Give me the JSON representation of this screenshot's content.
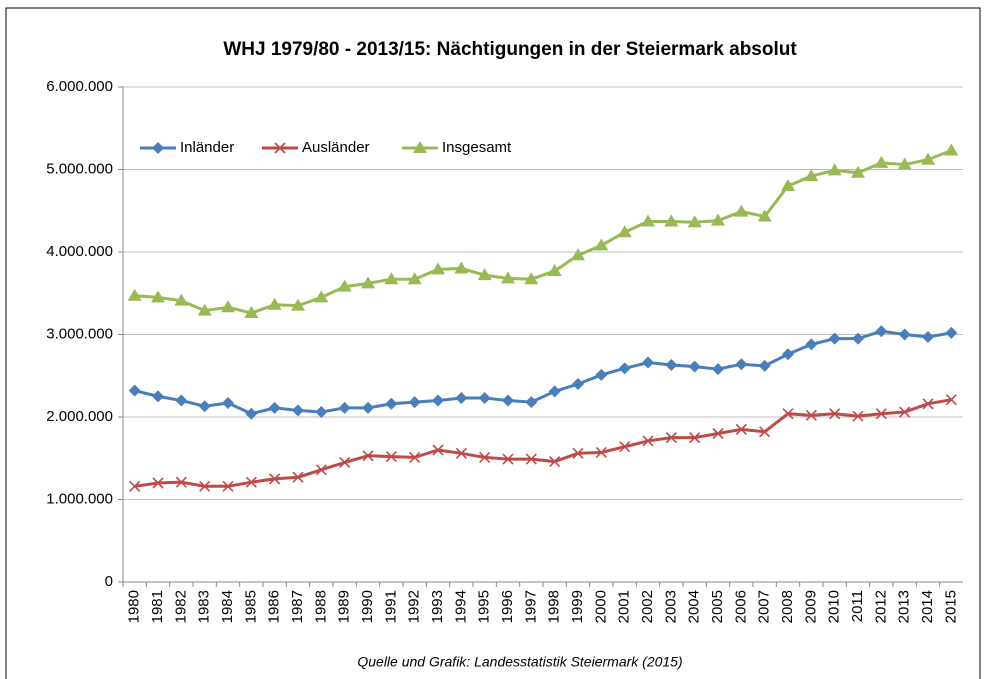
{
  "chart_data": {
    "type": "line",
    "title": "WHJ 1979/80 - 2013/15: Nächtigungen in der Steiermark absolut",
    "source": "Quelle und Grafik: Landesstatistik Steiermark (2015)",
    "categories": [
      "1980",
      "1981",
      "1982",
      "1983",
      "1984",
      "1985",
      "1986",
      "1987",
      "1988",
      "1989",
      "1990",
      "1991",
      "1992",
      "1993",
      "1994",
      "1995",
      "1996",
      "1997",
      "1998",
      "1999",
      "2000",
      "2001",
      "2002",
      "2003",
      "2004",
      "2005",
      "2006",
      "2007",
      "2008",
      "2009",
      "2010",
      "2011",
      "2012",
      "2013",
      "2014",
      "2015"
    ],
    "series": [
      {
        "name": "Inländer",
        "color": "#4a7ebb",
        "marker": "diamond",
        "values": [
          2320000,
          2250000,
          2200000,
          2130000,
          2170000,
          2040000,
          2110000,
          2080000,
          2060000,
          2110000,
          2110000,
          2160000,
          2180000,
          2200000,
          2230000,
          2230000,
          2200000,
          2180000,
          2310000,
          2400000,
          2510000,
          2590000,
          2660000,
          2630000,
          2610000,
          2580000,
          2640000,
          2620000,
          2760000,
          2880000,
          2950000,
          2950000,
          3040000,
          3000000,
          2970000,
          3020000
        ]
      },
      {
        "name": "Ausländer",
        "color": "#be4b48",
        "marker": "x",
        "values": [
          1160000,
          1200000,
          1210000,
          1160000,
          1160000,
          1210000,
          1250000,
          1270000,
          1360000,
          1450000,
          1530000,
          1520000,
          1510000,
          1600000,
          1560000,
          1510000,
          1490000,
          1490000,
          1460000,
          1560000,
          1570000,
          1640000,
          1710000,
          1750000,
          1750000,
          1800000,
          1850000,
          1820000,
          2040000,
          2020000,
          2040000,
          2010000,
          2040000,
          2060000,
          2160000,
          2210000
        ]
      },
      {
        "name": "Insgesamt",
        "color": "#98b954",
        "marker": "triangle",
        "values": [
          3470000,
          3450000,
          3410000,
          3290000,
          3330000,
          3260000,
          3360000,
          3350000,
          3450000,
          3580000,
          3620000,
          3670000,
          3670000,
          3790000,
          3800000,
          3720000,
          3680000,
          3670000,
          3770000,
          3960000,
          4080000,
          4240000,
          4370000,
          4370000,
          4360000,
          4380000,
          4490000,
          4430000,
          4800000,
          4920000,
          4990000,
          4960000,
          5080000,
          5060000,
          5120000,
          5230000
        ]
      }
    ],
    "ylim": [
      0,
      6000000
    ],
    "yticks": [
      0,
      {
        "value": 1000000,
        "label": "1.000.000"
      },
      {
        "value": 2000000,
        "label": "2.000.000"
      },
      {
        "value": 3000000,
        "label": "3.000.000"
      },
      {
        "value": 4000000,
        "label": "4.000.000"
      },
      {
        "value": 5000000,
        "label": "5.000.000"
      },
      {
        "value": 6000000,
        "label": "6.000.000"
      }
    ],
    "grid": true,
    "legend": "top-left"
  }
}
